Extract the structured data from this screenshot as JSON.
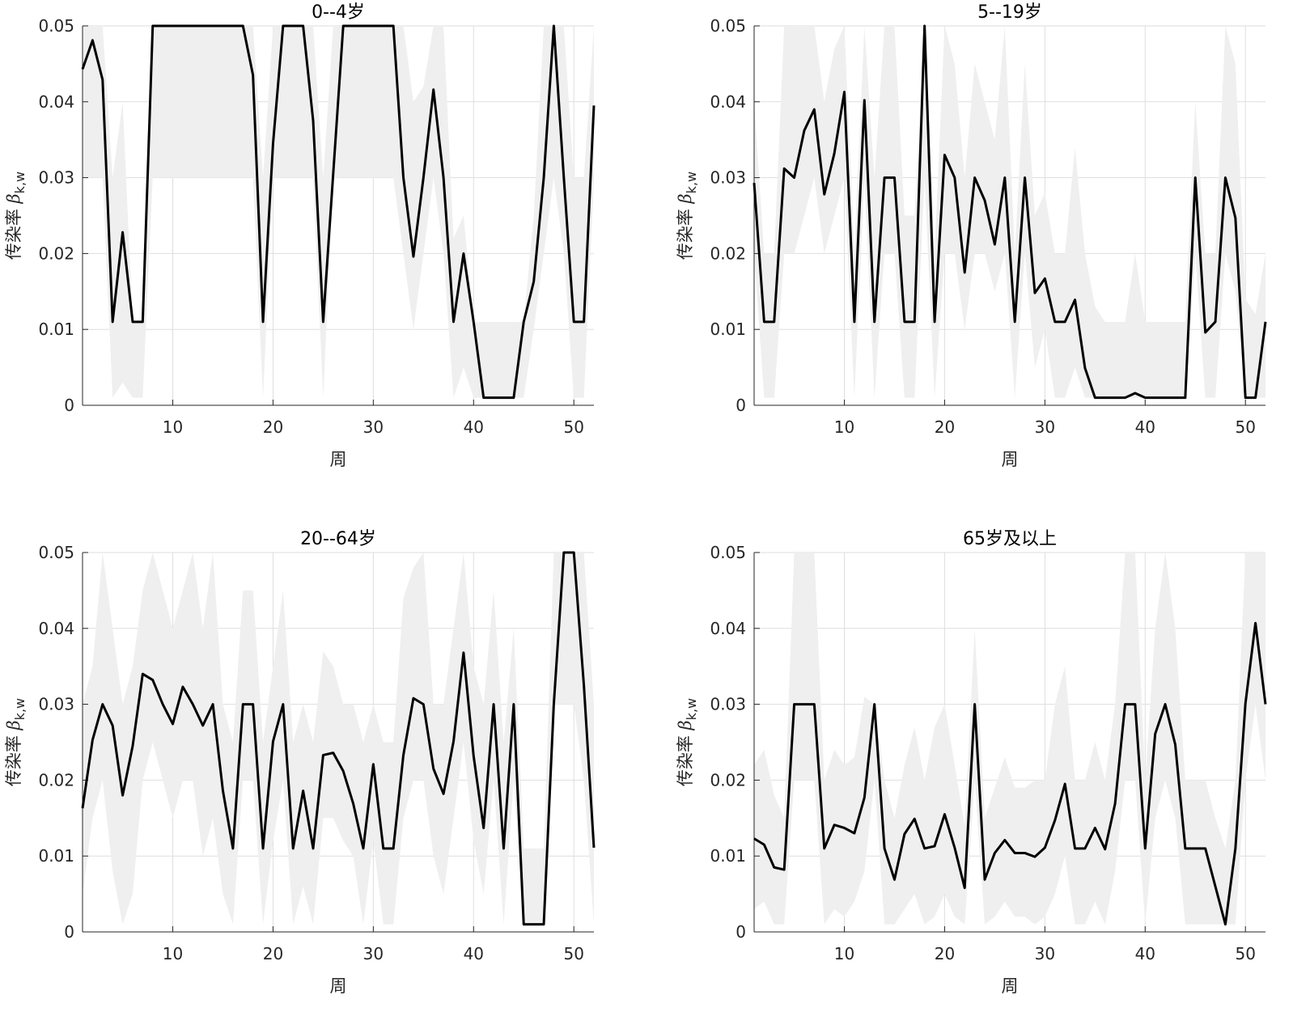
{
  "chart_data": [
    {
      "type": "line",
      "title": "0--4岁",
      "xlabel": "周",
      "ylabel": "传染率",
      "ylabel_symbol": "β",
      "ylabel_subscript": "k,w",
      "xlim": [
        1,
        52
      ],
      "ylim": [
        0,
        0.05
      ],
      "xticks": [
        10,
        20,
        30,
        40,
        50
      ],
      "yticks": [
        0,
        0.01,
        0.02,
        0.03,
        0.04,
        0.05
      ],
      "ytick_labels": [
        "0",
        "0.01",
        "0.02",
        "0.03",
        "0.04",
        "0.05"
      ],
      "grid": true,
      "line_color": "#000000",
      "band_color": "#efefef",
      "series": [
        {
          "name": "estimate",
          "x": [
            1,
            2,
            3,
            4,
            5,
            6,
            7,
            8,
            9,
            10,
            11,
            12,
            13,
            14,
            15,
            16,
            17,
            18,
            19,
            20,
            21,
            22,
            23,
            24,
            25,
            26,
            27,
            28,
            29,
            30,
            31,
            32,
            33,
            34,
            35,
            36,
            37,
            38,
            39,
            40,
            41,
            42,
            43,
            44,
            45,
            46,
            47,
            48,
            49,
            50,
            51,
            52
          ],
          "values": [
            0.0443,
            0.0481,
            0.0429,
            0.011,
            0.0228,
            0.011,
            0.011,
            0.05,
            0.05,
            0.05,
            0.05,
            0.05,
            0.05,
            0.05,
            0.05,
            0.05,
            0.05,
            0.0435,
            0.011,
            0.0345,
            0.05,
            0.05,
            0.05,
            0.0375,
            0.011,
            0.0305,
            0.05,
            0.05,
            0.05,
            0.05,
            0.05,
            0.05,
            0.03,
            0.0196,
            0.03,
            0.0416,
            0.03,
            0.011,
            0.02,
            0.011,
            0.001,
            0.001,
            0.001,
            0.001,
            0.011,
            0.0163,
            0.03,
            0.05,
            0.03,
            0.011,
            0.011,
            0.0395
          ]
        },
        {
          "name": "lower",
          "values": [
            0.03,
            0.03,
            0.03,
            0.001,
            0.003,
            0.001,
            0.001,
            0.03,
            0.03,
            0.03,
            0.03,
            0.03,
            0.03,
            0.03,
            0.03,
            0.03,
            0.03,
            0.03,
            0.001,
            0.03,
            0.03,
            0.03,
            0.03,
            0.03,
            0.001,
            0.03,
            0.03,
            0.03,
            0.03,
            0.03,
            0.03,
            0.03,
            0.02,
            0.01,
            0.02,
            0.03,
            0.02,
            0.001,
            0.005,
            0.001,
            0.001,
            0.001,
            0.001,
            0.001,
            0.001,
            0.01,
            0.02,
            0.03,
            0.02,
            0.001,
            0.001,
            0.03
          ]
        },
        {
          "name": "upper",
          "values": [
            0.05,
            0.05,
            0.05,
            0.03,
            0.04,
            0.011,
            0.011,
            0.05,
            0.05,
            0.05,
            0.05,
            0.05,
            0.05,
            0.05,
            0.05,
            0.05,
            0.05,
            0.05,
            0.03,
            0.05,
            0.05,
            0.05,
            0.05,
            0.05,
            0.03,
            0.05,
            0.05,
            0.05,
            0.05,
            0.05,
            0.05,
            0.05,
            0.05,
            0.04,
            0.042,
            0.05,
            0.05,
            0.022,
            0.025,
            0.011,
            0.011,
            0.011,
            0.011,
            0.011,
            0.011,
            0.025,
            0.05,
            0.05,
            0.05,
            0.03,
            0.03,
            0.05
          ]
        }
      ]
    },
    {
      "type": "line",
      "title": "5--19岁",
      "xlabel": "周",
      "ylabel": "传染率",
      "ylabel_symbol": "β",
      "ylabel_subscript": "k,w",
      "xlim": [
        1,
        52
      ],
      "ylim": [
        0,
        0.05
      ],
      "xticks": [
        10,
        20,
        30,
        40,
        50
      ],
      "yticks": [
        0,
        0.01,
        0.02,
        0.03,
        0.04,
        0.05
      ],
      "ytick_labels": [
        "0",
        "0.01",
        "0.02",
        "0.03",
        "0.04",
        "0.05"
      ],
      "grid": true,
      "line_color": "#000000",
      "band_color": "#efefef",
      "series": [
        {
          "name": "estimate",
          "x": [
            1,
            2,
            3,
            4,
            5,
            6,
            7,
            8,
            9,
            10,
            11,
            12,
            13,
            14,
            15,
            16,
            17,
            18,
            19,
            20,
            21,
            22,
            23,
            24,
            25,
            26,
            27,
            28,
            29,
            30,
            31,
            32,
            33,
            34,
            35,
            36,
            37,
            38,
            39,
            40,
            41,
            42,
            43,
            44,
            45,
            46,
            47,
            48,
            49,
            50,
            51,
            52
          ],
          "values": [
            0.0293,
            0.011,
            0.011,
            0.0312,
            0.03,
            0.0362,
            0.039,
            0.0278,
            0.0332,
            0.0413,
            0.011,
            0.0402,
            0.011,
            0.03,
            0.03,
            0.011,
            0.011,
            0.05,
            0.011,
            0.033,
            0.03,
            0.0175,
            0.03,
            0.027,
            0.0212,
            0.03,
            0.011,
            0.03,
            0.0148,
            0.0167,
            0.011,
            0.011,
            0.0139,
            0.0049,
            0.001,
            0.001,
            0.001,
            0.001,
            0.0016,
            0.001,
            0.001,
            0.001,
            0.001,
            0.001,
            0.03,
            0.0096,
            0.011,
            0.03,
            0.0247,
            0.001,
            0.001,
            0.011
          ]
        },
        {
          "name": "lower",
          "values": [
            0.02,
            0.001,
            0.001,
            0.02,
            0.02,
            0.025,
            0.03,
            0.02,
            0.025,
            0.03,
            0.001,
            0.03,
            0.001,
            0.02,
            0.02,
            0.001,
            0.001,
            0.03,
            0.001,
            0.02,
            0.02,
            0.01,
            0.02,
            0.02,
            0.015,
            0.02,
            0.001,
            0.02,
            0.005,
            0.01,
            0.001,
            0.001,
            0.005,
            0.001,
            0.001,
            0.001,
            0.001,
            0.001,
            0.001,
            0.001,
            0.001,
            0.001,
            0.001,
            0.001,
            0.02,
            0.001,
            0.001,
            0.02,
            0.015,
            0.001,
            0.001,
            0.001
          ]
        },
        {
          "name": "upper",
          "values": [
            0.04,
            0.02,
            0.02,
            0.05,
            0.05,
            0.05,
            0.05,
            0.04,
            0.047,
            0.05,
            0.02,
            0.05,
            0.03,
            0.05,
            0.05,
            0.025,
            0.025,
            0.05,
            0.02,
            0.05,
            0.045,
            0.03,
            0.045,
            0.04,
            0.035,
            0.05,
            0.02,
            0.045,
            0.025,
            0.028,
            0.02,
            0.02,
            0.034,
            0.02,
            0.013,
            0.011,
            0.011,
            0.011,
            0.02,
            0.011,
            0.011,
            0.011,
            0.011,
            0.011,
            0.04,
            0.02,
            0.02,
            0.05,
            0.045,
            0.014,
            0.012,
            0.02
          ]
        }
      ]
    },
    {
      "type": "line",
      "title": "20--64岁",
      "xlabel": "周",
      "ylabel": "传染率",
      "ylabel_symbol": "β",
      "ylabel_subscript": "k,w",
      "xlim": [
        1,
        52
      ],
      "ylim": [
        0,
        0.05
      ],
      "xticks": [
        10,
        20,
        30,
        40,
        50
      ],
      "yticks": [
        0,
        0.01,
        0.02,
        0.03,
        0.04,
        0.05
      ],
      "ytick_labels": [
        "0",
        "0.01",
        "0.02",
        "0.03",
        "0.04",
        "0.05"
      ],
      "grid": true,
      "line_color": "#000000",
      "band_color": "#efefef",
      "series": [
        {
          "name": "estimate",
          "x": [
            1,
            2,
            3,
            4,
            5,
            6,
            7,
            8,
            9,
            10,
            11,
            12,
            13,
            14,
            15,
            16,
            17,
            18,
            19,
            20,
            21,
            22,
            23,
            24,
            25,
            26,
            27,
            28,
            29,
            30,
            31,
            32,
            33,
            34,
            35,
            36,
            37,
            38,
            39,
            40,
            41,
            42,
            43,
            44,
            45,
            46,
            47,
            48,
            49,
            50,
            51,
            52
          ],
          "values": [
            0.0163,
            0.0253,
            0.03,
            0.0272,
            0.018,
            0.0245,
            0.034,
            0.0332,
            0.03,
            0.0274,
            0.0323,
            0.03,
            0.0272,
            0.03,
            0.0186,
            0.011,
            0.03,
            0.03,
            0.011,
            0.0251,
            0.03,
            0.011,
            0.0186,
            0.011,
            0.0233,
            0.0236,
            0.0212,
            0.0169,
            0.011,
            0.0221,
            0.011,
            0.011,
            0.0233,
            0.0308,
            0.03,
            0.0215,
            0.0182,
            0.0251,
            0.0368,
            0.0232,
            0.0137,
            0.03,
            0.011,
            0.03,
            0.001,
            0.001,
            0.001,
            0.03,
            0.05,
            0.05,
            0.0325,
            0.0111
          ]
        },
        {
          "name": "lower",
          "values": [
            0.005,
            0.015,
            0.02,
            0.008,
            0.001,
            0.005,
            0.02,
            0.025,
            0.02,
            0.015,
            0.02,
            0.02,
            0.01,
            0.015,
            0.005,
            0.001,
            0.02,
            0.02,
            0.001,
            0.012,
            0.02,
            0.001,
            0.006,
            0.001,
            0.015,
            0.015,
            0.012,
            0.01,
            0.001,
            0.012,
            0.001,
            0.001,
            0.015,
            0.02,
            0.02,
            0.01,
            0.005,
            0.015,
            0.025,
            0.012,
            0.005,
            0.02,
            0.001,
            0.02,
            0.001,
            0.001,
            0.001,
            0.03,
            0.03,
            0.03,
            0.02,
            0.001
          ]
        },
        {
          "name": "upper",
          "values": [
            0.03,
            0.035,
            0.05,
            0.04,
            0.03,
            0.035,
            0.045,
            0.05,
            0.045,
            0.04,
            0.045,
            0.05,
            0.04,
            0.05,
            0.03,
            0.025,
            0.045,
            0.045,
            0.025,
            0.035,
            0.045,
            0.025,
            0.03,
            0.025,
            0.037,
            0.035,
            0.03,
            0.03,
            0.025,
            0.03,
            0.025,
            0.025,
            0.044,
            0.048,
            0.05,
            0.03,
            0.03,
            0.04,
            0.05,
            0.035,
            0.03,
            0.045,
            0.025,
            0.04,
            0.011,
            0.011,
            0.011,
            0.05,
            0.05,
            0.05,
            0.05,
            0.03
          ]
        }
      ]
    },
    {
      "type": "line",
      "title": "65岁及以上",
      "xlabel": "周",
      "ylabel": "传染率",
      "ylabel_symbol": "β",
      "ylabel_subscript": "k,w",
      "xlim": [
        1,
        52
      ],
      "ylim": [
        0,
        0.05
      ],
      "xticks": [
        10,
        20,
        30,
        40,
        50
      ],
      "yticks": [
        0,
        0.01,
        0.02,
        0.03,
        0.04,
        0.05
      ],
      "ytick_labels": [
        "0",
        "0.01",
        "0.02",
        "0.03",
        "0.04",
        "0.05"
      ],
      "grid": true,
      "line_color": "#000000",
      "band_color": "#efefef",
      "series": [
        {
          "name": "estimate",
          "x": [
            1,
            2,
            3,
            4,
            5,
            6,
            7,
            8,
            9,
            10,
            11,
            12,
            13,
            14,
            15,
            16,
            17,
            18,
            19,
            20,
            21,
            22,
            23,
            24,
            25,
            26,
            27,
            28,
            29,
            30,
            31,
            32,
            33,
            34,
            35,
            36,
            37,
            38,
            39,
            40,
            41,
            42,
            43,
            44,
            45,
            46,
            47,
            48,
            49,
            50,
            51,
            52
          ],
          "values": [
            0.0123,
            0.0115,
            0.0085,
            0.0082,
            0.03,
            0.03,
            0.03,
            0.011,
            0.0141,
            0.0137,
            0.013,
            0.0177,
            0.03,
            0.011,
            0.0069,
            0.0129,
            0.0149,
            0.011,
            0.0113,
            0.0155,
            0.0111,
            0.0058,
            0.03,
            0.0069,
            0.0104,
            0.0121,
            0.0104,
            0.0104,
            0.0099,
            0.0111,
            0.0147,
            0.0195,
            0.011,
            0.011,
            0.0137,
            0.0109,
            0.0169,
            0.03,
            0.03,
            0.011,
            0.0261,
            0.03,
            0.0247,
            0.011,
            0.011,
            0.011,
            0.006,
            0.001,
            0.011,
            0.0301,
            0.0407,
            0.03
          ]
        },
        {
          "name": "lower",
          "values": [
            0.003,
            0.004,
            0.001,
            0.001,
            0.02,
            0.02,
            0.02,
            0.001,
            0.003,
            0.002,
            0.004,
            0.008,
            0.02,
            0.001,
            0.001,
            0.003,
            0.005,
            0.001,
            0.002,
            0.005,
            0.002,
            0.001,
            0.02,
            0.001,
            0.002,
            0.004,
            0.002,
            0.002,
            0.001,
            0.002,
            0.005,
            0.01,
            0.001,
            0.001,
            0.004,
            0.001,
            0.008,
            0.02,
            0.02,
            0.001,
            0.015,
            0.02,
            0.015,
            0.001,
            0.001,
            0.001,
            0.001,
            0.001,
            0.001,
            0.02,
            0.03,
            0.02
          ]
        },
        {
          "name": "upper",
          "values": [
            0.022,
            0.024,
            0.018,
            0.015,
            0.05,
            0.05,
            0.05,
            0.02,
            0.024,
            0.022,
            0.023,
            0.031,
            0.03,
            0.02,
            0.015,
            0.022,
            0.027,
            0.02,
            0.027,
            0.03,
            0.022,
            0.014,
            0.04,
            0.015,
            0.019,
            0.023,
            0.019,
            0.019,
            0.02,
            0.02,
            0.03,
            0.035,
            0.02,
            0.02,
            0.025,
            0.02,
            0.03,
            0.05,
            0.05,
            0.02,
            0.04,
            0.05,
            0.04,
            0.02,
            0.02,
            0.02,
            0.015,
            0.011,
            0.02,
            0.05,
            0.05,
            0.05
          ]
        }
      ]
    }
  ]
}
